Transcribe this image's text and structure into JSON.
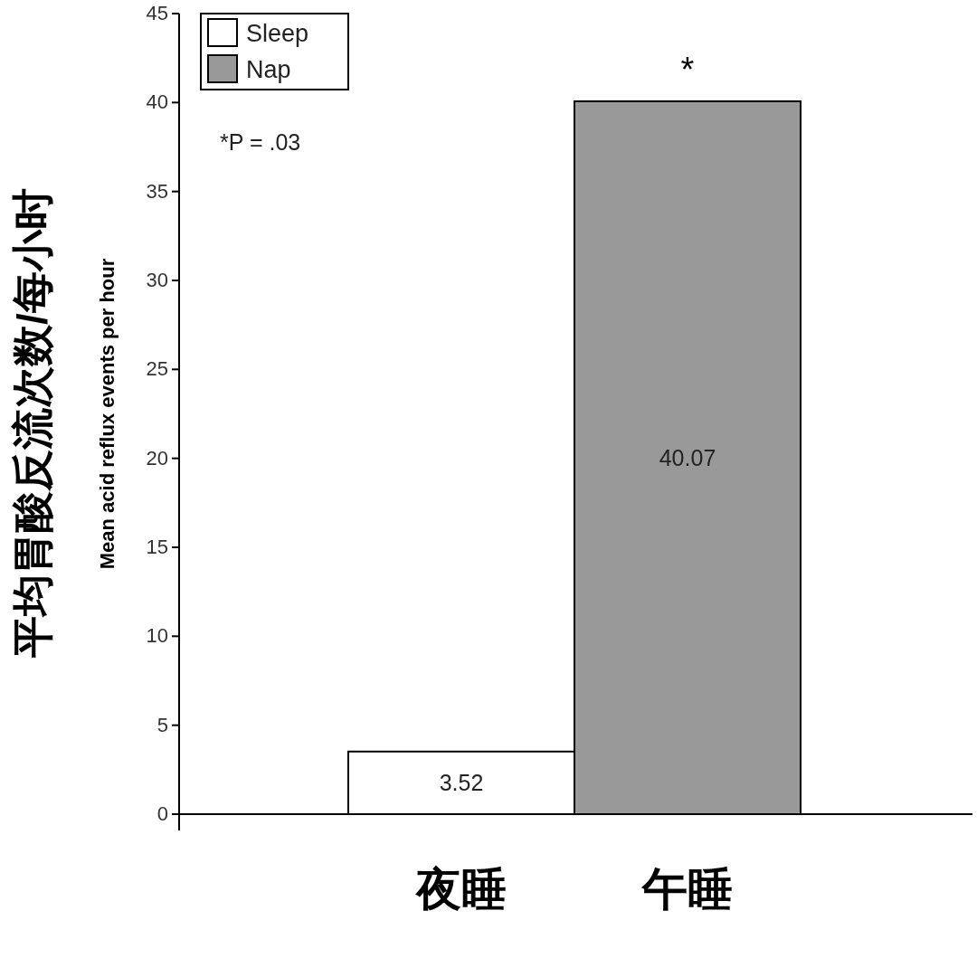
{
  "chart_data": {
    "type": "bar",
    "ylabel": "Mean acid reflux events per hour",
    "categories": [
      "夜睡",
      "午睡"
    ],
    "series": [
      {
        "name": "Sleep",
        "color": "#ffffff",
        "values": [
          3.52,
          null
        ]
      },
      {
        "name": "Nap",
        "color": "#999999",
        "values": [
          null,
          40.07
        ]
      }
    ],
    "ylim": [
      0,
      45
    ],
    "yticks": [
      0,
      5,
      10,
      15,
      20,
      25,
      30,
      35,
      40,
      45
    ],
    "data_labels": true,
    "legend": "top left",
    "grid": false,
    "annotations": [
      {
        "text": "*",
        "x": "午睡",
        "y": 40.07
      },
      "*P = .03",
      "平均胃酸反流次数/每小时"
    ]
  }
}
